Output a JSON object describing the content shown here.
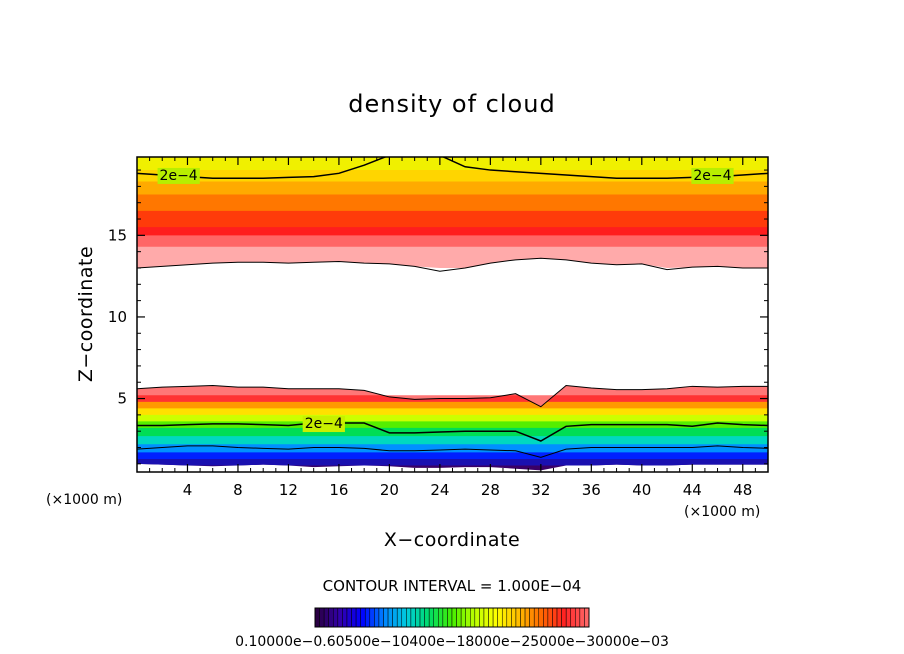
{
  "chart_data": {
    "type": "heatmap",
    "title": "density of cloud",
    "xlabel": "X−coordinate",
    "ylabel": "Z−coordinate",
    "x_unit_left": "(×1000 m)",
    "x_unit_right": "(×1000 m)",
    "xlim": [
      0,
      50
    ],
    "ylim": [
      0.5,
      19.8
    ],
    "x_ticks": [
      4,
      8,
      12,
      16,
      20,
      24,
      28,
      32,
      36,
      40,
      44,
      48
    ],
    "x_tick_labels": [
      "4",
      "8",
      "12",
      "16",
      "20",
      "24",
      "28",
      "32",
      "36",
      "40",
      "44",
      "48"
    ],
    "y_ticks": [
      5,
      10,
      15
    ],
    "y_tick_labels": [
      "5",
      "10",
      "15"
    ],
    "contour_interval_text": "CONTOUR INTERVAL = 1.000E−04",
    "contour_labels": [
      {
        "text": "2e−4",
        "x": 3.3,
        "z": 18.7
      },
      {
        "text": "2e−4",
        "x": 45.6,
        "z": 18.7
      },
      {
        "text": "2e−4",
        "x": 14.8,
        "z": 3.5
      }
    ],
    "colorbar_labels_text": "0.10000e−0.60500e−10400e−18000e−25000e−30000e−03",
    "colormap": [
      "#2a0044",
      "#3300aa",
      "#0000ff",
      "#0088ff",
      "#00ccdd",
      "#00dd66",
      "#44ee00",
      "#bbff00",
      "#ffff00",
      "#ffbb00",
      "#ff6600",
      "#ff2222",
      "#ff9999"
    ],
    "colorbar_stops": [
      "#2a0044",
      "#3300aa",
      "#0000ff",
      "#0088ff",
      "#00ccdd",
      "#00dd66",
      "#44ee00",
      "#bbff00",
      "#ffff00",
      "#ffbb00",
      "#ff6600",
      "#ff2222",
      "#ff6666"
    ],
    "upper_layer": {
      "base_z": [
        13.0,
        13.1,
        13.2,
        13.3,
        13.35,
        13.35,
        13.3,
        13.35,
        13.4,
        13.3,
        13.25,
        13.1,
        12.8,
        13.0,
        13.3,
        13.5,
        13.6,
        13.5,
        13.3,
        13.2,
        13.25,
        12.9,
        13.05,
        13.1,
        13.0,
        13.0
      ],
      "z_values": [
        13.0,
        14.3,
        15.0,
        15.5,
        16.5,
        17.5,
        18.3,
        19.0,
        19.8
      ],
      "colors": [
        "#ffaaaa",
        "#ff6666",
        "#ff1e1e",
        "#ff3b0a",
        "#ff7700",
        "#ffaa00",
        "#ffd500",
        "#f0f000",
        "#aaee00"
      ],
      "contour_2e4_z": [
        18.8,
        18.7,
        18.6,
        18.5,
        18.5,
        18.5,
        18.55,
        18.6,
        18.8,
        19.3,
        19.9,
        19.9,
        19.9,
        19.2,
        19.0,
        18.9,
        18.8,
        18.7,
        18.6,
        18.5,
        18.5,
        18.5,
        18.55,
        18.6,
        18.7,
        18.8
      ]
    },
    "lower_layer": {
      "top_z": [
        5.6,
        5.7,
        5.75,
        5.8,
        5.7,
        5.7,
        5.6,
        5.6,
        5.6,
        5.5,
        5.1,
        4.95,
        5.0,
        5.0,
        5.05,
        5.3,
        4.5,
        5.8,
        5.65,
        5.55,
        5.55,
        5.6,
        5.75,
        5.7,
        5.75,
        5.75
      ],
      "z_values": [
        0.6,
        0.9,
        1.3,
        1.7,
        2.2,
        2.7,
        3.2,
        3.6,
        4.0,
        4.4,
        4.8,
        5.2
      ],
      "colors": [
        "#3a0066",
        "#1a10b0",
        "#0020ff",
        "#0090ff",
        "#00d8c0",
        "#00dd55",
        "#55ee00",
        "#ccff00",
        "#ffe000",
        "#ff9900",
        "#ff3333",
        "#ff7777"
      ],
      "contour_2e4_z": [
        3.35,
        3.35,
        3.4,
        3.45,
        3.45,
        3.4,
        3.35,
        3.5,
        3.5,
        3.5,
        2.9,
        2.9,
        2.95,
        3.0,
        3.0,
        3.0,
        2.4,
        3.3,
        3.4,
        3.4,
        3.4,
        3.4,
        3.3,
        3.5,
        3.4,
        3.35
      ],
      "contour_low_z": [
        1.9,
        2.0,
        2.1,
        2.1,
        2.0,
        1.95,
        1.9,
        2.0,
        2.0,
        1.95,
        1.8,
        1.8,
        1.85,
        1.9,
        1.85,
        1.8,
        1.4,
        1.9,
        2.0,
        2.0,
        2.0,
        2.0,
        2.0,
        2.1,
        2.0,
        1.95
      ],
      "bottom_z": [
        1.0,
        0.95,
        0.9,
        0.85,
        0.9,
        0.95,
        0.9,
        0.8,
        0.85,
        0.9,
        0.85,
        0.75,
        0.75,
        0.8,
        0.8,
        0.7,
        0.6,
        0.9,
        0.9,
        0.95,
        0.9,
        0.9,
        0.95,
        0.95,
        0.95,
        0.95
      ]
    }
  }
}
